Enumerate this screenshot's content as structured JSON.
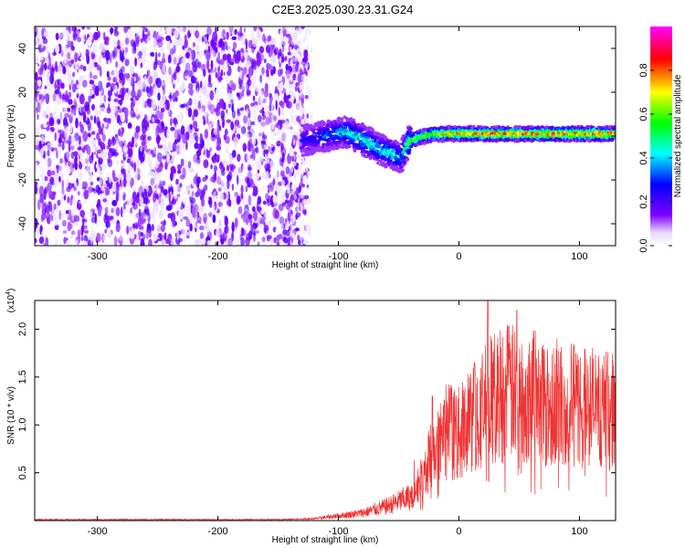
{
  "title": "C2E3.2025.030.23.31.G24",
  "colors": {
    "snr_line": "#ee3333",
    "colorbar": [
      "#ffffff",
      "#7f00ff",
      "#0000ff",
      "#00ffff",
      "#00ff00",
      "#ffff00",
      "#ff0000",
      "#ff00ff"
    ]
  },
  "chart_data": [
    {
      "type": "heatmap",
      "title": "C2E3.2025.030.23.31.G24",
      "xlabel": "Height of straight line (km)",
      "ylabel": "Frequency (Hz)",
      "xlim": [
        -352,
        130
      ],
      "ylim": [
        -50,
        50
      ],
      "x_ticks": [
        -300,
        -200,
        -100,
        0,
        100
      ],
      "y_ticks": [
        -40,
        -20,
        0,
        20,
        40
      ],
      "colorbar": {
        "label": "Normalized spectral amplitude",
        "range": [
          0,
          1
        ],
        "ticks": [
          0.0,
          0.2,
          0.4,
          0.6,
          0.8
        ]
      },
      "signal_track": {
        "x": [
          -130,
          -110,
          -95,
          -85,
          -75,
          -65,
          -55,
          -48,
          -42,
          -35,
          -20,
          0,
          30,
          60,
          90,
          130
        ],
        "frequency": [
          -2,
          0,
          2,
          0,
          -3,
          -6,
          -8,
          -10,
          -3,
          -1,
          1,
          1,
          1,
          1,
          1,
          1
        ],
        "peak_amplitude": [
          0.25,
          0.35,
          0.45,
          0.5,
          0.5,
          0.45,
          0.5,
          0.4,
          0.6,
          0.7,
          0.75,
          0.85,
          0.9,
          0.9,
          0.9,
          0.9
        ]
      },
      "noise_region": {
        "x_range": [
          -352,
          -125
        ],
        "amplitude": 0.15
      }
    },
    {
      "type": "line",
      "xlabel": "Height of straight line (km)",
      "ylabel": "SNR (10 * v/v)",
      "y_multiplier": "(x10^4)",
      "xlim": [
        -352,
        130
      ],
      "ylim": [
        0,
        2.3
      ],
      "x_ticks": [
        -300,
        -200,
        -100,
        0,
        100
      ],
      "y_ticks": [
        0.5,
        1.0,
        1.5,
        2.0
      ],
      "series": [
        {
          "x": [
            -352,
            -300,
            -200,
            -150,
            -120,
            -100,
            -80,
            -60,
            -40,
            -30,
            -20,
            -10,
            0,
            10,
            20,
            30,
            40,
            50,
            60,
            70,
            80,
            90,
            100,
            110,
            120,
            130
          ],
          "y": [
            0.01,
            0.01,
            0.01,
            0.01,
            0.02,
            0.05,
            0.08,
            0.15,
            0.25,
            0.45,
            0.75,
            0.95,
            0.9,
            1.05,
            1.2,
            1.3,
            1.35,
            1.3,
            1.35,
            1.3,
            1.25,
            1.2,
            1.2,
            1.2,
            1.15,
            1.15
          ],
          "peaks": [
            {
              "x": -22,
              "y": 1.3
            },
            {
              "x": 13,
              "y": 1.65
            },
            {
              "x": 24,
              "y": 2.3
            },
            {
              "x": 40,
              "y": 1.98
            },
            {
              "x": 48,
              "y": 2.2
            },
            {
              "x": 62,
              "y": 1.98
            },
            {
              "x": 98,
              "y": 1.62
            }
          ]
        }
      ]
    }
  ]
}
